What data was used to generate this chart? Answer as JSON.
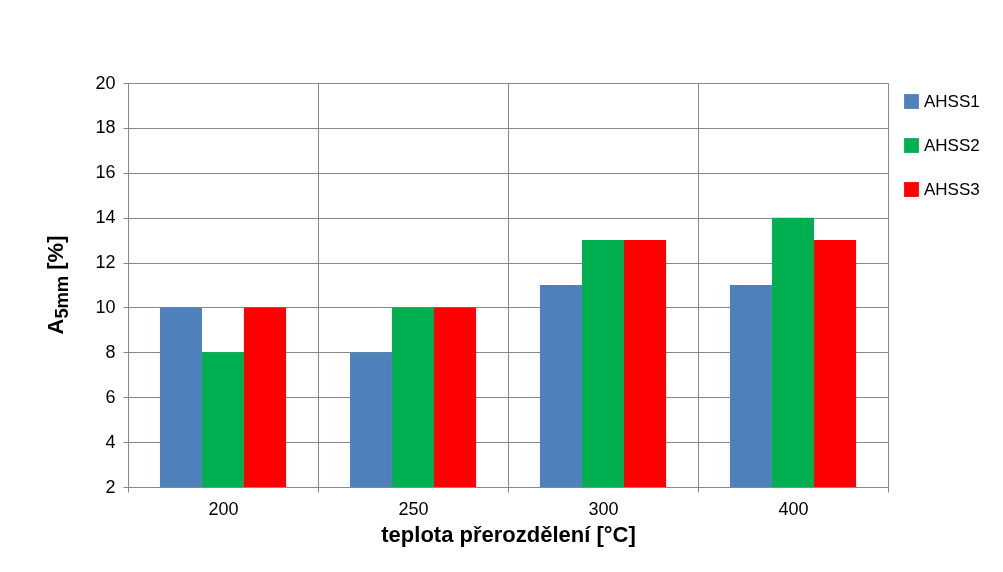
{
  "chart_data": {
    "type": "bar",
    "xlabel": "teplota přerozdělení [°C]",
    "ylabel": "A$_{5mm}$ [%]",
    "categories": [
      "200",
      "250",
      "300",
      "400"
    ],
    "series": [
      {
        "name": "AHSS1",
        "color": "#4f81bd",
        "values": [
          10,
          8,
          11,
          11
        ]
      },
      {
        "name": "AHSS2",
        "color": "#00b050",
        "values": [
          8,
          10,
          13,
          14
        ]
      },
      {
        "name": "AHSS3",
        "color": "#ff0000",
        "values": [
          10,
          10,
          13,
          13
        ]
      }
    ],
    "ylim": [
      2,
      20
    ],
    "yticks": [
      2,
      4,
      6,
      8,
      10,
      12,
      14,
      16,
      18,
      20
    ],
    "grid": true,
    "legend": "top right"
  }
}
